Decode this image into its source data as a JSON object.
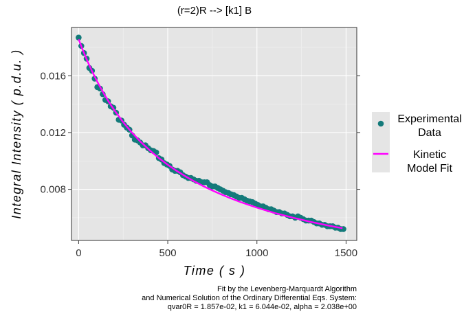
{
  "chart_data": {
    "type": "scatter",
    "title": "(r=2)R --> [k1] B",
    "xlabel": "Time ( s )",
    "ylabel": "Integral Intensity ( p.d.u. )",
    "xlim": [
      -40,
      1560
    ],
    "ylim": [
      0.0044,
      0.0194
    ],
    "x_ticks": [
      0,
      500,
      1000,
      1500
    ],
    "x_tick_labels": [
      "0",
      "500",
      "1000",
      "1500"
    ],
    "y_ticks": [
      0.008,
      0.012,
      0.016
    ],
    "y_tick_labels": [
      "0.008",
      "0.012",
      "0.016"
    ],
    "grid": true,
    "legend_position": "right",
    "series": [
      {
        "name": "Experimental\nData",
        "kind": "points",
        "color": "#147a7a",
        "x": [
          0,
          15,
          30,
          45,
          60,
          75,
          90,
          105,
          120,
          135,
          150,
          165,
          180,
          195,
          210,
          225,
          240,
          255,
          270,
          285,
          300,
          315,
          330,
          345,
          360,
          375,
          390,
          405,
          420,
          435,
          450,
          465,
          480,
          495,
          510,
          525,
          540,
          555,
          570,
          585,
          600,
          615,
          630,
          645,
          660,
          675,
          690,
          705,
          720,
          735,
          750,
          765,
          780,
          795,
          810,
          825,
          840,
          855,
          870,
          885,
          900,
          915,
          930,
          945,
          960,
          975,
          990,
          1005,
          1020,
          1035,
          1050,
          1065,
          1080,
          1095,
          1110,
          1125,
          1140,
          1155,
          1170,
          1185,
          1200,
          1215,
          1230,
          1245,
          1260,
          1275,
          1290,
          1305,
          1320,
          1335,
          1350,
          1365,
          1380,
          1395,
          1410,
          1425,
          1440,
          1455,
          1470,
          1485
        ],
        "y": [
          0.01869,
          0.0181,
          0.0176,
          0.0172,
          0.01655,
          0.01635,
          0.0158,
          0.0152,
          0.0151,
          0.0147,
          0.0143,
          0.0142,
          0.01385,
          0.01375,
          0.0134,
          0.0129,
          0.01285,
          0.01255,
          0.01235,
          0.0122,
          0.0118,
          0.0115,
          0.01145,
          0.0113,
          0.0111,
          0.0111,
          0.0109,
          0.01075,
          0.0107,
          0.0106,
          0.0102,
          0.0101,
          0.00985,
          0.00975,
          0.00965,
          0.0094,
          0.0093,
          0.0093,
          0.0092,
          0.009,
          0.0089,
          0.0088,
          0.0088,
          0.0087,
          0.0086,
          0.0086,
          0.0085,
          0.0085,
          0.0085,
          0.0083,
          0.0082,
          0.0082,
          0.0081,
          0.008,
          0.0079,
          0.0078,
          0.00775,
          0.00765,
          0.0076,
          0.0075,
          0.0074,
          0.0074,
          0.0073,
          0.0072,
          0.00715,
          0.0071,
          0.007,
          0.0069,
          0.0068,
          0.0068,
          0.0067,
          0.0066,
          0.0066,
          0.0065,
          0.0064,
          0.0064,
          0.0063,
          0.0063,
          0.0062,
          0.0061,
          0.0061,
          0.006,
          0.0061,
          0.006,
          0.0059,
          0.0058,
          0.0058,
          0.0058,
          0.0057,
          0.0056,
          0.0056,
          0.0055,
          0.0055,
          0.0054,
          0.0054,
          0.0054,
          0.0053,
          0.0053,
          0.0052,
          0.0052
        ]
      },
      {
        "name": "Kinetic\nModel Fit",
        "kind": "line",
        "color": "#ff00ff",
        "x": [
          0,
          25,
          50,
          75,
          100,
          125,
          150,
          175,
          200,
          250,
          300,
          350,
          400,
          450,
          500,
          550,
          600,
          650,
          700,
          750,
          800,
          850,
          900,
          950,
          1000,
          1050,
          1100,
          1150,
          1200,
          1250,
          1300,
          1350,
          1400,
          1450,
          1480
        ],
        "y": [
          0.01857,
          0.01776,
          0.01701,
          0.01633,
          0.01569,
          0.01511,
          0.01456,
          0.01405,
          0.01358,
          0.01273,
          0.01198,
          0.01132,
          0.01073,
          0.0102,
          0.00973,
          0.0093,
          0.00891,
          0.00855,
          0.00822,
          0.00792,
          0.00764,
          0.00738,
          0.00714,
          0.00692,
          0.00671,
          0.00652,
          0.00633,
          0.00617,
          0.00601,
          0.00586,
          0.00571,
          0.00558,
          0.00545,
          0.00533,
          0.00526
        ]
      }
    ],
    "caption": [
      "Fit by the Levenberg-Marquardt Algorithm",
      "and Numerical Solution of the Ordinary Differential Eqs. System:",
      "qvar0R = 1.857e-02, k1 = 6.044e-02, alpha = 2.038e+00"
    ]
  }
}
